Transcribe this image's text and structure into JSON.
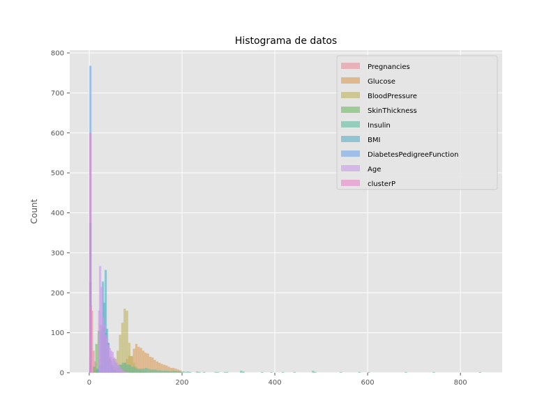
{
  "chart_data": {
    "type": "histogram",
    "title": "Histograma de datos",
    "xlabel": "",
    "ylabel": "Count",
    "xlim": [
      -42,
      890
    ],
    "ylim": [
      0,
      807
    ],
    "xticks": [
      0,
      200,
      400,
      600,
      800
    ],
    "yticks": [
      0,
      100,
      200,
      300,
      400,
      500,
      600,
      700,
      800
    ],
    "grid": true,
    "legend_position": "top-right",
    "bin_width": 4.9,
    "series": [
      {
        "name": "Pregnancies",
        "color": "#e8909c",
        "bins": [
          [
            0,
            227
          ],
          [
            3.5,
            155
          ],
          [
            6.9,
            55
          ],
          [
            10.3,
            28
          ],
          [
            13.7,
            10
          ],
          [
            17.1,
            3
          ]
        ]
      },
      {
        "name": "Glucose",
        "color": "#d99a55",
        "bins": [
          [
            0,
            5
          ],
          [
            44,
            3
          ],
          [
            49,
            8
          ],
          [
            54,
            10
          ],
          [
            59,
            15
          ],
          [
            64,
            20
          ],
          [
            69,
            20
          ],
          [
            74,
            25
          ],
          [
            79,
            35
          ],
          [
            84,
            42
          ],
          [
            89,
            42
          ],
          [
            94,
            60
          ],
          [
            99,
            72
          ],
          [
            104,
            65
          ],
          [
            109,
            62
          ],
          [
            114,
            55
          ],
          [
            119,
            50
          ],
          [
            124,
            48
          ],
          [
            129,
            40
          ],
          [
            134,
            38
          ],
          [
            139,
            32
          ],
          [
            144,
            28
          ],
          [
            149,
            25
          ],
          [
            154,
            22
          ],
          [
            159,
            20
          ],
          [
            164,
            18
          ],
          [
            169,
            15
          ],
          [
            174,
            12
          ],
          [
            179,
            12
          ],
          [
            184,
            10
          ],
          [
            189,
            8
          ],
          [
            194,
            6
          ]
        ]
      },
      {
        "name": "BloodPressure",
        "color": "#bdb35e",
        "bins": [
          [
            0,
            35
          ],
          [
            24,
            3
          ],
          [
            29,
            4
          ],
          [
            34,
            2
          ],
          [
            39,
            5
          ],
          [
            44,
            10
          ],
          [
            49,
            15
          ],
          [
            54,
            35
          ],
          [
            59,
            55
          ],
          [
            64,
            95
          ],
          [
            69,
            125
          ],
          [
            74,
            160
          ],
          [
            79,
            155
          ],
          [
            84,
            75
          ],
          [
            89,
            40
          ],
          [
            94,
            25
          ],
          [
            99,
            15
          ],
          [
            104,
            8
          ],
          [
            109,
            5
          ],
          [
            114,
            3
          ],
          [
            119,
            2
          ]
        ]
      },
      {
        "name": "SkinThickness",
        "color": "#6cb860",
        "bins": [
          [
            0,
            227
          ],
          [
            8,
            15
          ],
          [
            13,
            72
          ],
          [
            18,
            105
          ],
          [
            23,
            120
          ],
          [
            28,
            115
          ],
          [
            33,
            100
          ],
          [
            38,
            75
          ],
          [
            43,
            40
          ],
          [
            48,
            20
          ],
          [
            53,
            8
          ],
          [
            58,
            4
          ],
          [
            63,
            3
          ]
        ]
      },
      {
        "name": "Insulin",
        "color": "#5fbaa0",
        "bins": [
          [
            0,
            374
          ],
          [
            15,
            10
          ],
          [
            20,
            15
          ],
          [
            25,
            20
          ],
          [
            30,
            25
          ],
          [
            35,
            30
          ],
          [
            40,
            35
          ],
          [
            45,
            30
          ],
          [
            50,
            35
          ],
          [
            55,
            25
          ],
          [
            60,
            20
          ],
          [
            65,
            20
          ],
          [
            70,
            25
          ],
          [
            75,
            25
          ],
          [
            80,
            20
          ],
          [
            85,
            20
          ],
          [
            90,
            15
          ],
          [
            95,
            15
          ],
          [
            100,
            10
          ],
          [
            105,
            10
          ],
          [
            110,
            10
          ],
          [
            115,
            10
          ],
          [
            120,
            12
          ],
          [
            125,
            10
          ],
          [
            130,
            8
          ],
          [
            135,
            8
          ],
          [
            140,
            8
          ],
          [
            145,
            6
          ],
          [
            150,
            6
          ],
          [
            155,
            5
          ],
          [
            160,
            5
          ],
          [
            165,
            5
          ],
          [
            170,
            4
          ],
          [
            175,
            4
          ],
          [
            180,
            5
          ],
          [
            185,
            4
          ],
          [
            190,
            4
          ],
          [
            195,
            3
          ],
          [
            200,
            3
          ],
          [
            205,
            2
          ],
          [
            210,
            3
          ],
          [
            215,
            2
          ],
          [
            230,
            3
          ],
          [
            235,
            2
          ],
          [
            245,
            2
          ],
          [
            270,
            2
          ],
          [
            275,
            2
          ],
          [
            290,
            2
          ],
          [
            295,
            2
          ],
          [
            325,
            5
          ],
          [
            330,
            3
          ],
          [
            370,
            2
          ],
          [
            390,
            2
          ],
          [
            415,
            2
          ],
          [
            440,
            2
          ],
          [
            480,
            5
          ],
          [
            485,
            2
          ],
          [
            540,
            2
          ],
          [
            580,
            2
          ],
          [
            600,
            2
          ],
          [
            680,
            2
          ],
          [
            740,
            2
          ],
          [
            840,
            2
          ]
        ]
      },
      {
        "name": "BMI",
        "color": "#55aec2",
        "bins": [
          [
            0,
            11
          ],
          [
            18,
            8
          ],
          [
            21,
            20
          ],
          [
            24,
            105
          ],
          [
            27,
            228
          ],
          [
            30,
            175
          ],
          [
            33,
            257
          ],
          [
            36,
            110
          ],
          [
            39,
            75
          ],
          [
            42,
            35
          ],
          [
            45,
            20
          ],
          [
            48,
            12
          ],
          [
            51,
            8
          ],
          [
            54,
            4
          ],
          [
            57,
            3
          ],
          [
            60,
            2
          ],
          [
            64,
            1
          ]
        ]
      },
      {
        "name": "DiabetesPedigreeFunction",
        "color": "#6fa5e8",
        "bins": [
          [
            0,
            768
          ]
        ]
      },
      {
        "name": "Age",
        "color": "#c89ae8",
        "bins": [
          [
            19,
            155
          ],
          [
            21,
            267
          ],
          [
            24,
            215
          ],
          [
            27,
            140
          ],
          [
            30,
            120
          ],
          [
            33,
            95
          ],
          [
            36,
            85
          ],
          [
            39,
            70
          ],
          [
            42,
            62
          ],
          [
            45,
            55
          ],
          [
            48,
            52
          ],
          [
            51,
            38
          ],
          [
            54,
            30
          ],
          [
            57,
            25
          ],
          [
            60,
            20
          ],
          [
            63,
            14
          ],
          [
            66,
            10
          ],
          [
            69,
            6
          ],
          [
            72,
            4
          ],
          [
            75,
            3
          ],
          [
            79,
            2
          ]
        ]
      },
      {
        "name": "clusterP",
        "color": "#e886c8",
        "bins": [
          [
            0,
            600
          ],
          [
            1,
            168
          ]
        ]
      }
    ]
  }
}
